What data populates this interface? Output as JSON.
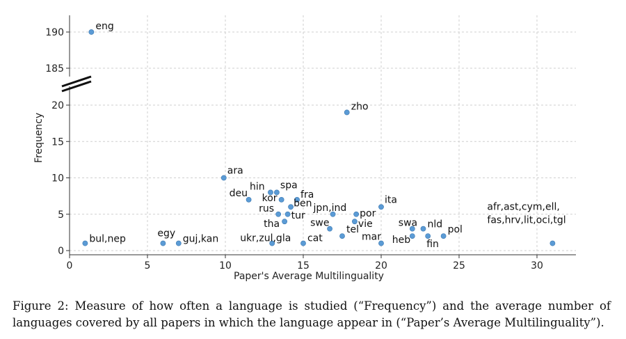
{
  "chart_data": {
    "type": "scatter",
    "xlabel": "Paper's Average Multilinguality",
    "ylabel": "Frequency",
    "xlim": [
      0,
      32.5
    ],
    "xticks": [
      0,
      5,
      10,
      15,
      20,
      25,
      30
    ],
    "yticks_lower": [
      0,
      5,
      10,
      15,
      20
    ],
    "yticks_upper": [
      185,
      190
    ],
    "axis_break": true,
    "grid": true,
    "point_color": "#5b9bd5",
    "points": [
      {
        "label": "eng",
        "x": 1.4,
        "y": 190
      },
      {
        "label": "zho",
        "x": 17.8,
        "y": 19
      },
      {
        "label": "ara",
        "x": 9.9,
        "y": 10
      },
      {
        "label": "hin",
        "x": 12.9,
        "y": 8
      },
      {
        "label": "spa",
        "x": 13.3,
        "y": 8
      },
      {
        "label": "deu",
        "x": 11.5,
        "y": 7
      },
      {
        "label": "kor",
        "x": 13.6,
        "y": 7
      },
      {
        "label": "fra",
        "x": 14.6,
        "y": 7
      },
      {
        "label": "ben",
        "x": 14.2,
        "y": 6
      },
      {
        "label": "ita",
        "x": 20.0,
        "y": 6
      },
      {
        "label": "rus",
        "x": 13.4,
        "y": 5
      },
      {
        "label": "tur",
        "x": 14.0,
        "y": 5
      },
      {
        "label": "jpn,ind",
        "x": 16.9,
        "y": 5
      },
      {
        "label": "por",
        "x": 18.4,
        "y": 5
      },
      {
        "label": "tha",
        "x": 13.8,
        "y": 4
      },
      {
        "label": "vie",
        "x": 18.3,
        "y": 4
      },
      {
        "label": "swe",
        "x": 16.7,
        "y": 3
      },
      {
        "label": "swa",
        "x": 22.0,
        "y": 3
      },
      {
        "label": "nld",
        "x": 22.7,
        "y": 3
      },
      {
        "label": "tel",
        "x": 17.5,
        "y": 2
      },
      {
        "label": "heb",
        "x": 22.0,
        "y": 2
      },
      {
        "label": "fin",
        "x": 23.0,
        "y": 2
      },
      {
        "label": "pol",
        "x": 24.0,
        "y": 2
      },
      {
        "label": "bul,nep",
        "x": 1.0,
        "y": 1
      },
      {
        "label": "egy",
        "x": 6.0,
        "y": 1
      },
      {
        "label": "guj,kan",
        "x": 7.0,
        "y": 1
      },
      {
        "label": "ukr,zul,gla",
        "x": 13.0,
        "y": 1
      },
      {
        "label": "cat",
        "x": 15.0,
        "y": 1
      },
      {
        "label": "mar",
        "x": 20.0,
        "y": 1
      },
      {
        "label": "afr,ast,cym,ell,\nfas,hrv,lit,oci,tgl",
        "x": 31.0,
        "y": 1
      }
    ]
  },
  "caption": "Figure 2: Measure of how often a language is studied (“Frequency”) and the average number of languages covered by all papers in which the language appear in (“Paper’s Average Multilinguality”)."
}
